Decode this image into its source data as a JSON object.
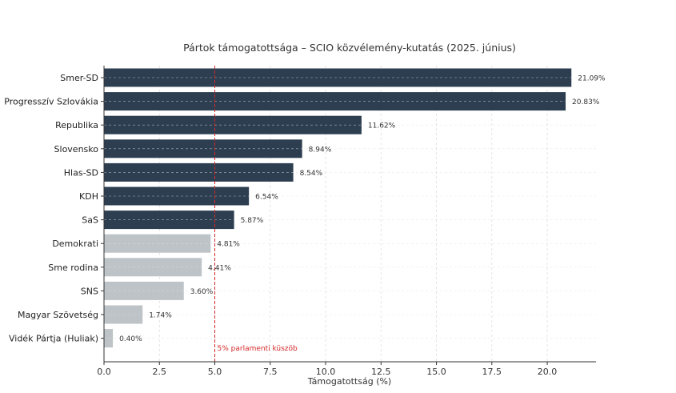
{
  "chart_data": {
    "type": "bar",
    "orientation": "horizontal",
    "title": "Pártok támogatottsága – SCIO közvélemény-kutatás (2025. június)",
    "xlabel": "Támogatottság (%)",
    "ylabel": "",
    "xlim": [
      0,
      22.2
    ],
    "xticks": [
      "0.0",
      "2.5",
      "5.0",
      "7.5",
      "10.0",
      "12.5",
      "15.0",
      "17.5",
      "20.0"
    ],
    "grid": true,
    "categories": [
      "Smer-SD",
      "Progresszív Szlovákia",
      "Republika",
      "Slovensko",
      "Hlas-SD",
      "KDH",
      "SaS",
      "Demokrati",
      "Sme rodina",
      "SNS",
      "Magyar Szövetség",
      "Vidék Pártja (Huliak)"
    ],
    "values": [
      21.09,
      20.83,
      11.62,
      8.94,
      8.54,
      6.54,
      5.87,
      4.81,
      4.41,
      3.6,
      1.74,
      0.4
    ],
    "value_labels": [
      "21.09%",
      "20.83%",
      "11.62%",
      "8.94%",
      "8.54%",
      "6.54%",
      "5.87%",
      "4.81%",
      "4.41%",
      "3.60%",
      "1.74%",
      "0.40%"
    ],
    "threshold": {
      "value": 5,
      "label": "5% parlamenti küszöb",
      "color": "#d62728"
    },
    "colors": {
      "above": "#2c3e50",
      "below": "#bdc3c7"
    }
  }
}
